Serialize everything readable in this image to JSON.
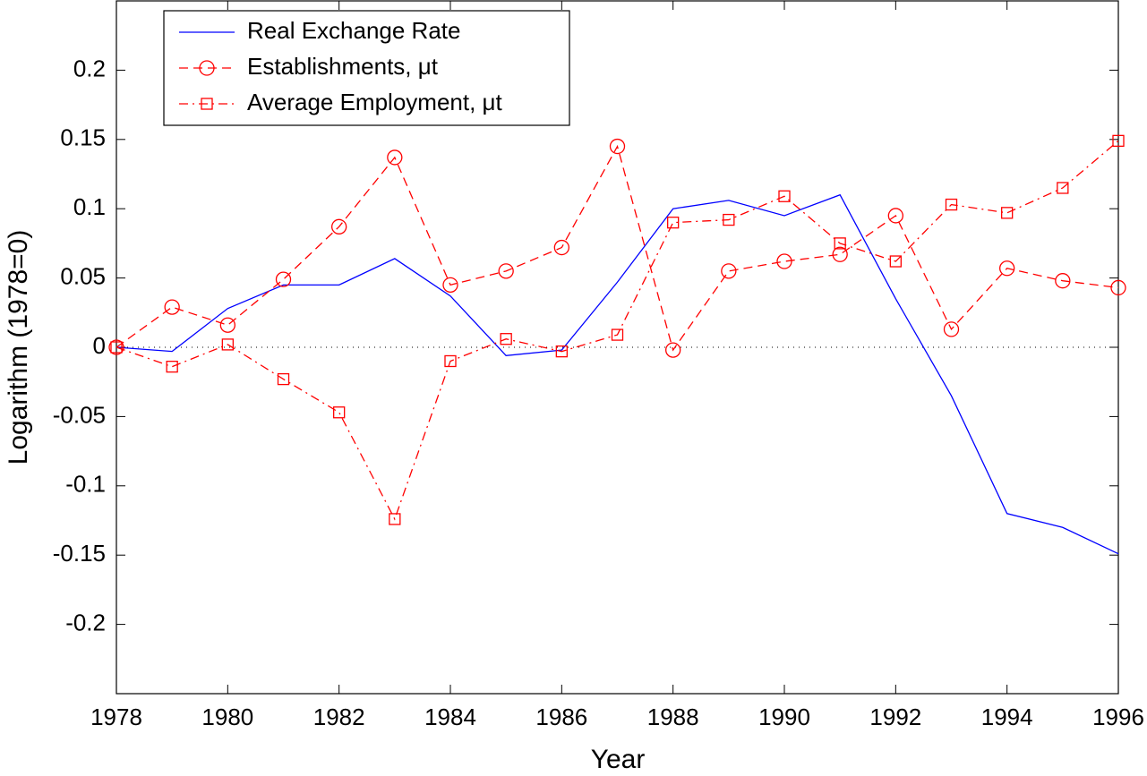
{
  "chart_data": {
    "type": "line",
    "xlabel": "Year",
    "ylabel": "Logarithm (1978=0)",
    "x": [
      1978,
      1979,
      1980,
      1981,
      1982,
      1983,
      1984,
      1985,
      1986,
      1987,
      1988,
      1989,
      1990,
      1991,
      1992,
      1993,
      1994,
      1995,
      1996
    ],
    "xlim": [
      1978,
      1996
    ],
    "xticks": [
      1978,
      1980,
      1982,
      1984,
      1986,
      1988,
      1990,
      1992,
      1994,
      1996
    ],
    "ylim": [
      -0.25,
      0.25
    ],
    "yticks": [
      -0.2,
      -0.15,
      -0.1,
      -0.05,
      0,
      0.05,
      0.1,
      0.15,
      0.2
    ],
    "legend": "upper left",
    "series": [
      {
        "name": "Real Exchange Rate",
        "color": "#0000ff",
        "style": "solid",
        "marker": "none",
        "values": [
          0,
          -0.003,
          0.028,
          0.045,
          0.045,
          0.064,
          0.037,
          -0.006,
          -0.002,
          0.047,
          0.1,
          0.106,
          0.095,
          0.11,
          0.035,
          -0.035,
          -0.12,
          -0.13,
          -0.149
        ]
      },
      {
        "name": "Establishments, μt",
        "color": "#ff0000",
        "style": "dashed",
        "marker": "circle",
        "values": [
          0,
          0.029,
          0.016,
          0.049,
          0.087,
          0.137,
          0.045,
          0.055,
          0.072,
          0.145,
          -0.002,
          0.055,
          0.062,
          0.067,
          0.095,
          0.013,
          0.057,
          0.048,
          0.043
        ]
      },
      {
        "name": "Average Employment, μt",
        "color": "#ff0000",
        "style": "dashdot",
        "marker": "square",
        "values": [
          0,
          -0.014,
          0.002,
          -0.023,
          -0.047,
          -0.124,
          -0.01,
          0.006,
          -0.003,
          0.009,
          0.09,
          0.092,
          0.109,
          0.075,
          0.062,
          0.103,
          0.097,
          0.115,
          0.149
        ]
      }
    ]
  }
}
